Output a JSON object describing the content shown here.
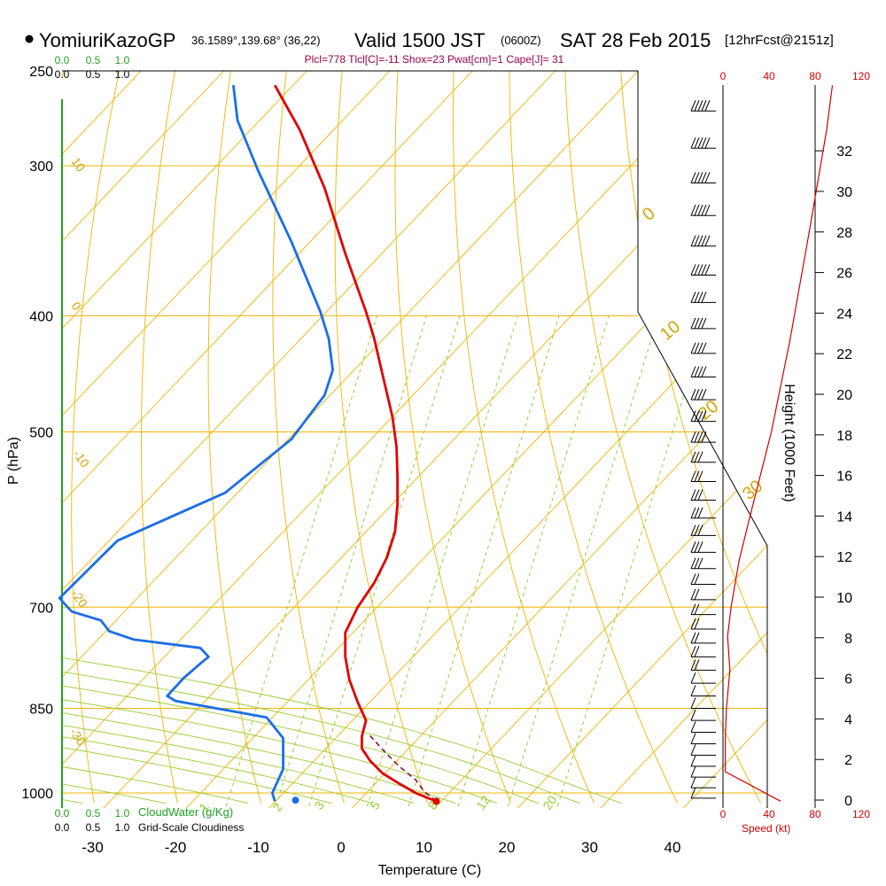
{
  "header": {
    "station": "YomiuriKazoGP",
    "coords": "36.1589°,139.68° (36,22)",
    "valid": "Valid 1500 JST",
    "zulu": "(0600Z)",
    "date": "SAT 28 Feb 2015",
    "fcst": "[12hrFcst@2151z]",
    "indices": "Plcl=778 Tlcl[C]=-11 Shox=23 Pwat[cm]=1 Cape[J]= 31"
  },
  "colors": {
    "temperature": "#e00000",
    "dewpoint": "#1a6ee8",
    "isobar": "#f0b400",
    "dryAdiabat": "#f0b400",
    "moistAdiabat": "#9acd32",
    "mixingRatio": "#9acd32",
    "cloud": "#22a022",
    "speed": "#d00000"
  },
  "chart_data": {
    "type": "skew-t",
    "xlabel": "Temperature (C)",
    "ylabel": "P (hPa)",
    "x_ticks": [
      -30,
      -20,
      -10,
      0,
      10,
      20,
      30,
      40
    ],
    "pressure_ticks": [
      250,
      300,
      400,
      500,
      700,
      850,
      1000
    ],
    "height_label": "Height (1000 Feet)",
    "height_ticks": [
      0,
      2,
      4,
      6,
      8,
      10,
      12,
      14,
      16,
      18,
      20,
      22,
      24,
      26,
      28,
      30,
      32
    ],
    "speed_ticks": [
      0,
      40,
      80,
      120
    ],
    "speed_label": "Speed (kt)",
    "cloud_ticks": [
      "0.0",
      "0.5",
      "1.0"
    ],
    "cloud_water_label": "CloudWater (g/Kg)",
    "cloudiness_label": "Grid-Scale Cloudiness",
    "dry_adiabat_labels": [
      "10",
      "0",
      "-10",
      "-20",
      "-30"
    ],
    "moist_adiabat_labels": [
      "0",
      "10",
      "20",
      "30"
    ],
    "mixing_ratio_labels": [
      "1",
      "2",
      "3",
      "5",
      "8",
      "12",
      "20"
    ],
    "series": [
      {
        "name": "temperature",
        "points": [
          [
            11.5,
            1016
          ],
          [
            10.5,
            1010
          ],
          [
            9,
            1000
          ],
          [
            7,
            982
          ],
          [
            5,
            963
          ],
          [
            3.5,
            940
          ],
          [
            2.5,
            918
          ],
          [
            2.5,
            897
          ],
          [
            3,
            870
          ],
          [
            2,
            840
          ],
          [
            1,
            805
          ],
          [
            0.5,
            770
          ],
          [
            0.5,
            735
          ],
          [
            2,
            700
          ],
          [
            4,
            668
          ],
          [
            5.5,
            637
          ],
          [
            6.5,
            606
          ],
          [
            6.8,
            575
          ],
          [
            6.8,
            545
          ],
          [
            6.7,
            515
          ],
          [
            6.2,
            486
          ],
          [
            5,
            448
          ],
          [
            4,
            418
          ],
          [
            3,
            397
          ],
          [
            0.5,
            355
          ],
          [
            -2,
            313
          ],
          [
            -5,
            280
          ],
          [
            -8,
            257
          ]
        ]
      },
      {
        "name": "dewpoint",
        "points": [
          [
            -8,
            1016
          ],
          [
            -8.3,
            1000
          ],
          [
            -7,
            955
          ],
          [
            -7,
            900
          ],
          [
            -9,
            865
          ],
          [
            -20,
            838
          ],
          [
            -21,
            830
          ],
          [
            -19,
            802
          ],
          [
            -17,
            780
          ],
          [
            -16,
            770
          ],
          [
            -17,
            757
          ],
          [
            -25,
            745
          ],
          [
            -28,
            733
          ],
          [
            -29,
            718
          ],
          [
            -32.5,
            706
          ],
          [
            -33,
            700
          ],
          [
            -34,
            688
          ],
          [
            -27,
            616
          ],
          [
            -14,
            562
          ],
          [
            -6,
            507
          ],
          [
            -2,
            466
          ],
          [
            -1,
            444
          ],
          [
            -1.5,
            418
          ],
          [
            -2.5,
            397
          ],
          [
            -6,
            347
          ],
          [
            -10,
            303
          ],
          [
            -12.5,
            275
          ],
          [
            -13,
            257
          ]
        ]
      },
      {
        "name": "parcel",
        "points": [
          [
            11.5,
            1016
          ],
          [
            10,
            997
          ],
          [
            9,
            975
          ],
          [
            7,
            950
          ],
          [
            5,
            920
          ],
          [
            3.5,
            896
          ]
        ]
      }
    ],
    "dewpoint_marker": [
      -5.5,
      1014
    ],
    "surface_temp_marker": [
      11.5,
      1016
    ],
    "speed_profile": [
      [
        50,
        1016
      ],
      [
        2,
        960
      ],
      [
        2,
        900
      ],
      [
        3,
        850
      ],
      [
        6,
        790
      ],
      [
        4,
        740
      ],
      [
        7,
        700
      ],
      [
        14,
        640
      ],
      [
        25,
        580
      ],
      [
        42,
        500
      ],
      [
        58,
        420
      ],
      [
        75,
        340
      ],
      [
        90,
        280
      ],
      [
        95,
        257
      ]
    ]
  }
}
